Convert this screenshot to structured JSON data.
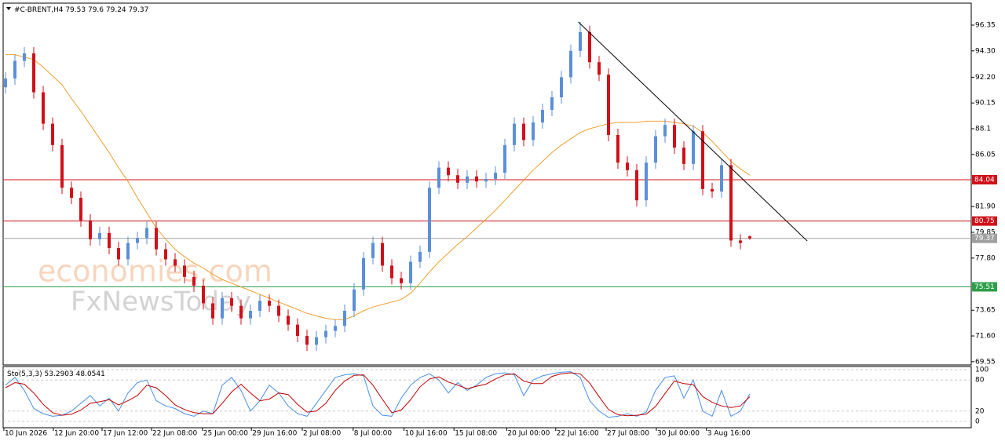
{
  "chart_data": {
    "type": "candlestick",
    "symbol": "#C-BRENT,H4",
    "bull_color": "#5b8fd9",
    "bear_color": "#d0101a",
    "xlim": [
      -0.25,
      102.5
    ],
    "ylim": [
      69.29,
      98.1
    ],
    "open": [
      91.4,
      92.1,
      93.5,
      94.1,
      91.0,
      88.5,
      86.8,
      83.4,
      82.6,
      80.8,
      79.3,
      79.8,
      78.6,
      77.7,
      79.0,
      79.4,
      80.2,
      78.5,
      77.7,
      77.2,
      76.3,
      75.6,
      74.2,
      73.0,
      74.6,
      74.0,
      73.0,
      73.6,
      74.4,
      74.0,
      73.2,
      72.5,
      71.6,
      70.9,
      71.5,
      72.0,
      72.4,
      73.6,
      75.3,
      77.8,
      79.0,
      77.2,
      76.2,
      75.8,
      77.5,
      78.3,
      83.4,
      85.0,
      84.4,
      83.8,
      84.3,
      83.9,
      84.1,
      84.6,
      86.8,
      88.5,
      87.2,
      88.6,
      89.6,
      90.6,
      92.2,
      94.3,
      95.8,
      93.4,
      92.4,
      87.6,
      85.4,
      84.8,
      82.4,
      85.4,
      87.5,
      88.4,
      86.6,
      85.3,
      87.9,
      83.3,
      83.1,
      85.2,
      79.2,
      79.53
    ],
    "high": [
      92.6,
      94.0,
      94.6,
      94.6,
      91.5,
      89.0,
      87.3,
      83.9,
      83.1,
      81.3,
      80.3,
      80.3,
      79.1,
      79.5,
      79.9,
      80.7,
      80.7,
      79.0,
      78.2,
      77.7,
      76.8,
      76.1,
      74.7,
      75.1,
      75.1,
      74.5,
      74.1,
      74.9,
      74.9,
      74.5,
      73.7,
      73.0,
      72.1,
      72.0,
      72.5,
      72.9,
      74.1,
      75.8,
      78.3,
      79.5,
      79.5,
      77.7,
      76.7,
      78.0,
      78.8,
      83.9,
      85.5,
      85.5,
      84.9,
      84.8,
      84.8,
      84.6,
      85.1,
      87.3,
      89.0,
      89.0,
      89.1,
      90.1,
      91.1,
      92.7,
      94.8,
      96.6,
      96.3,
      93.9,
      92.9,
      88.1,
      85.9,
      85.3,
      85.9,
      88.0,
      88.9,
      88.9,
      87.1,
      88.4,
      88.4,
      83.8,
      85.7,
      85.7,
      79.7,
      79.6
    ],
    "low": [
      90.9,
      91.6,
      93.0,
      90.5,
      88.0,
      86.3,
      82.9,
      82.1,
      80.3,
      78.8,
      78.8,
      78.1,
      77.2,
      77.2,
      78.5,
      78.9,
      78.0,
      77.2,
      76.7,
      75.8,
      75.1,
      73.7,
      72.5,
      72.5,
      73.5,
      72.5,
      72.5,
      73.1,
      73.5,
      72.7,
      72.0,
      71.1,
      70.4,
      70.4,
      71.0,
      71.5,
      71.9,
      73.1,
      74.8,
      77.3,
      76.7,
      75.7,
      75.3,
      75.3,
      77.0,
      77.8,
      82.9,
      83.9,
      83.3,
      83.3,
      83.4,
      83.4,
      83.6,
      84.1,
      86.3,
      86.7,
      86.7,
      88.1,
      89.1,
      90.1,
      91.7,
      93.8,
      92.9,
      91.9,
      87.1,
      84.9,
      84.3,
      81.9,
      81.9,
      84.9,
      87.0,
      86.1,
      84.8,
      84.8,
      82.8,
      82.6,
      82.6,
      78.7,
      78.5,
      79.24
    ],
    "close": [
      92.1,
      93.5,
      94.1,
      91.0,
      88.5,
      86.8,
      83.4,
      82.6,
      80.8,
      79.3,
      79.8,
      78.6,
      77.7,
      79.0,
      79.4,
      80.2,
      78.5,
      77.7,
      77.2,
      76.3,
      75.6,
      74.2,
      73.0,
      74.6,
      74.0,
      73.0,
      73.6,
      74.4,
      74.0,
      73.2,
      72.5,
      71.6,
      70.9,
      71.5,
      72.0,
      72.4,
      73.6,
      75.3,
      77.8,
      79.0,
      77.2,
      76.2,
      75.8,
      77.5,
      78.3,
      83.4,
      85.0,
      84.4,
      83.8,
      84.3,
      83.9,
      84.1,
      84.6,
      86.8,
      88.5,
      87.2,
      88.6,
      89.6,
      90.6,
      92.2,
      94.3,
      95.8,
      93.4,
      92.4,
      87.6,
      85.4,
      84.8,
      82.4,
      85.4,
      87.5,
      88.4,
      86.6,
      85.3,
      87.9,
      83.3,
      83.1,
      85.2,
      79.2,
      79.0,
      79.37
    ],
    "ma": {
      "color": "#f0a030",
      "values": [
        94.0,
        94.0,
        93.8,
        93.6,
        93.0,
        92.3,
        91.6,
        90.5,
        89.5,
        88.4,
        87.3,
        86.2,
        85.0,
        83.9,
        82.6,
        81.4,
        80.2,
        79.3,
        78.5,
        77.9,
        77.4,
        77.0,
        76.5,
        76.1,
        75.8,
        75.5,
        75.2,
        74.9,
        74.6,
        74.3,
        74.0,
        73.7,
        73.4,
        73.2,
        73.0,
        72.9,
        72.9,
        73.2,
        73.6,
        73.9,
        74.1,
        74.3,
        74.5,
        75.0,
        75.8,
        76.7,
        77.5,
        78.2,
        78.9,
        79.5,
        80.2,
        80.9,
        81.6,
        82.4,
        83.2,
        84.0,
        84.8,
        85.5,
        86.2,
        86.8,
        87.3,
        87.8,
        88.1,
        88.3,
        88.5,
        88.6,
        88.6,
        88.6,
        88.7,
        88.7,
        88.7,
        88.6,
        88.5,
        88.3,
        87.8,
        87.1,
        86.3,
        85.5,
        84.9,
        84.4
      ]
    },
    "yticks": [
      96.35,
      {
        "value": 94.3,
        "label": "94.30"
      },
      {
        "value": 92.2,
        "label": "92.20"
      },
      90.15,
      88.1,
      86.05,
      {
        "value": 81.9,
        "label": "81.90"
      },
      79.85,
      {
        "value": 77.8,
        "label": "77.80"
      },
      73.65,
      {
        "value": 71.6,
        "label": "71.60"
      },
      69.55
    ],
    "xticks": [
      {
        "value": -0.17,
        "label": "10 Jun 2026"
      },
      {
        "value": 5.08,
        "label": "12 Jun 20:00"
      },
      {
        "value": 10.25,
        "label": "17 Jun 12:00"
      },
      {
        "value": 15.5,
        "label": "22 Jun 08:00"
      },
      {
        "value": 20.9,
        "label": "25 Jun 00:00"
      },
      {
        "value": 26.1,
        "label": "29 Jun 16:00"
      },
      {
        "value": 31.5,
        "label": "2 Jul 08:00"
      },
      {
        "value": 36.9,
        "label": "8 Jul 00:00"
      },
      {
        "value": 42.3,
        "label": "10 Jul 16:00"
      },
      {
        "value": 47.6,
        "label": "15 Jul 08:00"
      },
      {
        "value": 53.2,
        "label": "20 Jul 00:00"
      },
      {
        "value": 58.4,
        "label": "22 Jul 16:00"
      },
      {
        "value": 63.75,
        "label": "27 Jul 08:00"
      },
      {
        "value": 69.08,
        "label": "30 Jul 00:00"
      },
      {
        "value": 74.4,
        "label": "3 Aug 16:00"
      }
    ],
    "levels": [
      {
        "value": 84.04,
        "color": "#d0101a"
      },
      {
        "value": 80.75,
        "color": "#d0101a"
      },
      {
        "value": 75.51,
        "color": "#2e9e4a"
      }
    ],
    "current_color": "#a0a0a0",
    "trendline": {
      "x": [
        60.8,
        85.1
      ],
      "y": [
        96.6,
        79.16
      ],
      "color": "#000000"
    },
    "watermark": [
      "economies.com",
      "FxNewsToday"
    ],
    "indicator": {
      "label": "Sto(5,3,3)",
      "ylim": [
        -12.1,
        106.06
      ],
      "yticks": [
        100,
        80,
        20,
        0
      ],
      "grid": true,
      "series": [
        {
          "color": "#4a90e2",
          "values": [
            70,
            85,
            60,
            25,
            15,
            10,
            12,
            20,
            35,
            50,
            30,
            45,
            20,
            55,
            75,
            80,
            40,
            30,
            25,
            15,
            10,
            20,
            15,
            70,
            85,
            60,
            20,
            40,
            70,
            55,
            30,
            15,
            10,
            35,
            60,
            85,
            90,
            92,
            88,
            30,
            12,
            10,
            45,
            70,
            85,
            92,
            80,
            55,
            75,
            60,
            70,
            85,
            92,
            94,
            90,
            50,
            80,
            88,
            92,
            95,
            96,
            85,
            40,
            20,
            8,
            10,
            15,
            10,
            18,
            60,
            85,
            88,
            45,
            80,
            20,
            10,
            60,
            10,
            20,
            53.2903
          ]
        },
        {
          "color": "#c00000",
          "values": [
            65,
            75,
            72,
            55,
            33,
            17,
            12,
            14,
            22,
            35,
            38,
            42,
            32,
            40,
            50,
            70,
            65,
            50,
            32,
            23,
            17,
            15,
            15,
            35,
            57,
            72,
            55,
            40,
            43,
            55,
            52,
            33,
            18,
            20,
            35,
            60,
            78,
            89,
            90,
            70,
            43,
            17,
            22,
            42,
            67,
            82,
            86,
            76,
            70,
            63,
            68,
            72,
            82,
            90,
            92,
            78,
            73,
            73,
            87,
            92,
            94,
            92,
            74,
            48,
            23,
            13,
            11,
            12,
            14,
            29,
            54,
            78,
            73,
            71,
            48,
            37,
            30,
            27,
            30,
            48.0541
          ]
        }
      ]
    }
  }
}
